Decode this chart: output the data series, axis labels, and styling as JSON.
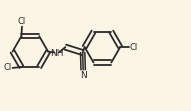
{
  "bg_color": "#fbf5e6",
  "bond_color": "#2a2a2a",
  "atom_color": "#2a2a2a",
  "bond_lw": 1.3,
  "ring_r": 0.18,
  "figsize": [
    1.91,
    1.11
  ],
  "dpi": 100,
  "xlim": [
    0.0,
    1.91
  ],
  "ylim": [
    0.0,
    1.11
  ]
}
